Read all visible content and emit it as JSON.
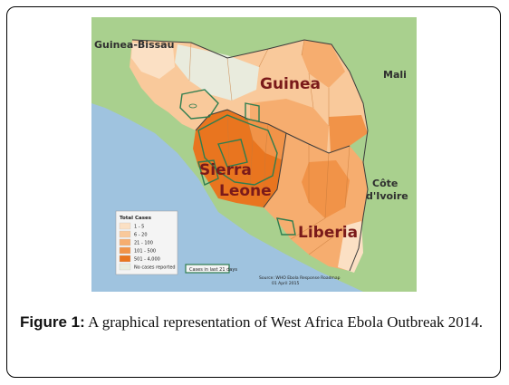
{
  "map": {
    "country_labels": {
      "guinea": "Guinea",
      "sierra_leone_line1": "Sierra",
      "sierra_leone_line2": "Leone",
      "liberia": "Liberia"
    },
    "neighbor_labels": {
      "guinea_bissau": "Guinea-Bissau",
      "mali": "Mali",
      "cote_divoire_line1": "Côte",
      "cote_divoire_line2": "d'Ivoire"
    },
    "legend": {
      "title": "Total Cases",
      "items": [
        {
          "label": "1 - 5",
          "color": "#fbe0c4"
        },
        {
          "label": "6 - 20",
          "color": "#f9c99b"
        },
        {
          "label": "21 - 100",
          "color": "#f6ad6f"
        },
        {
          "label": "101 - 500",
          "color": "#f19348"
        },
        {
          "label": "501 - 4,000",
          "color": "#e9751f"
        },
        {
          "label": "No cases reported",
          "color": "#e8ede0"
        }
      ],
      "recent_cases_label": "Cases in last 21 days",
      "recent_cases_color": "#2e7d4f"
    },
    "source_line1": "Source: WHO Ebola Response Roadmap",
    "source_line2": "01 April 2015",
    "colors": {
      "ocean": "#9fc3df",
      "neighbor_land": "#a9d08e",
      "no_cases": "#e8ede0",
      "border": "#2e7d4f"
    }
  },
  "caption": {
    "label": "Figure 1:",
    "text": " A graphical representation of West Africa Ebola Outbreak 2014."
  }
}
